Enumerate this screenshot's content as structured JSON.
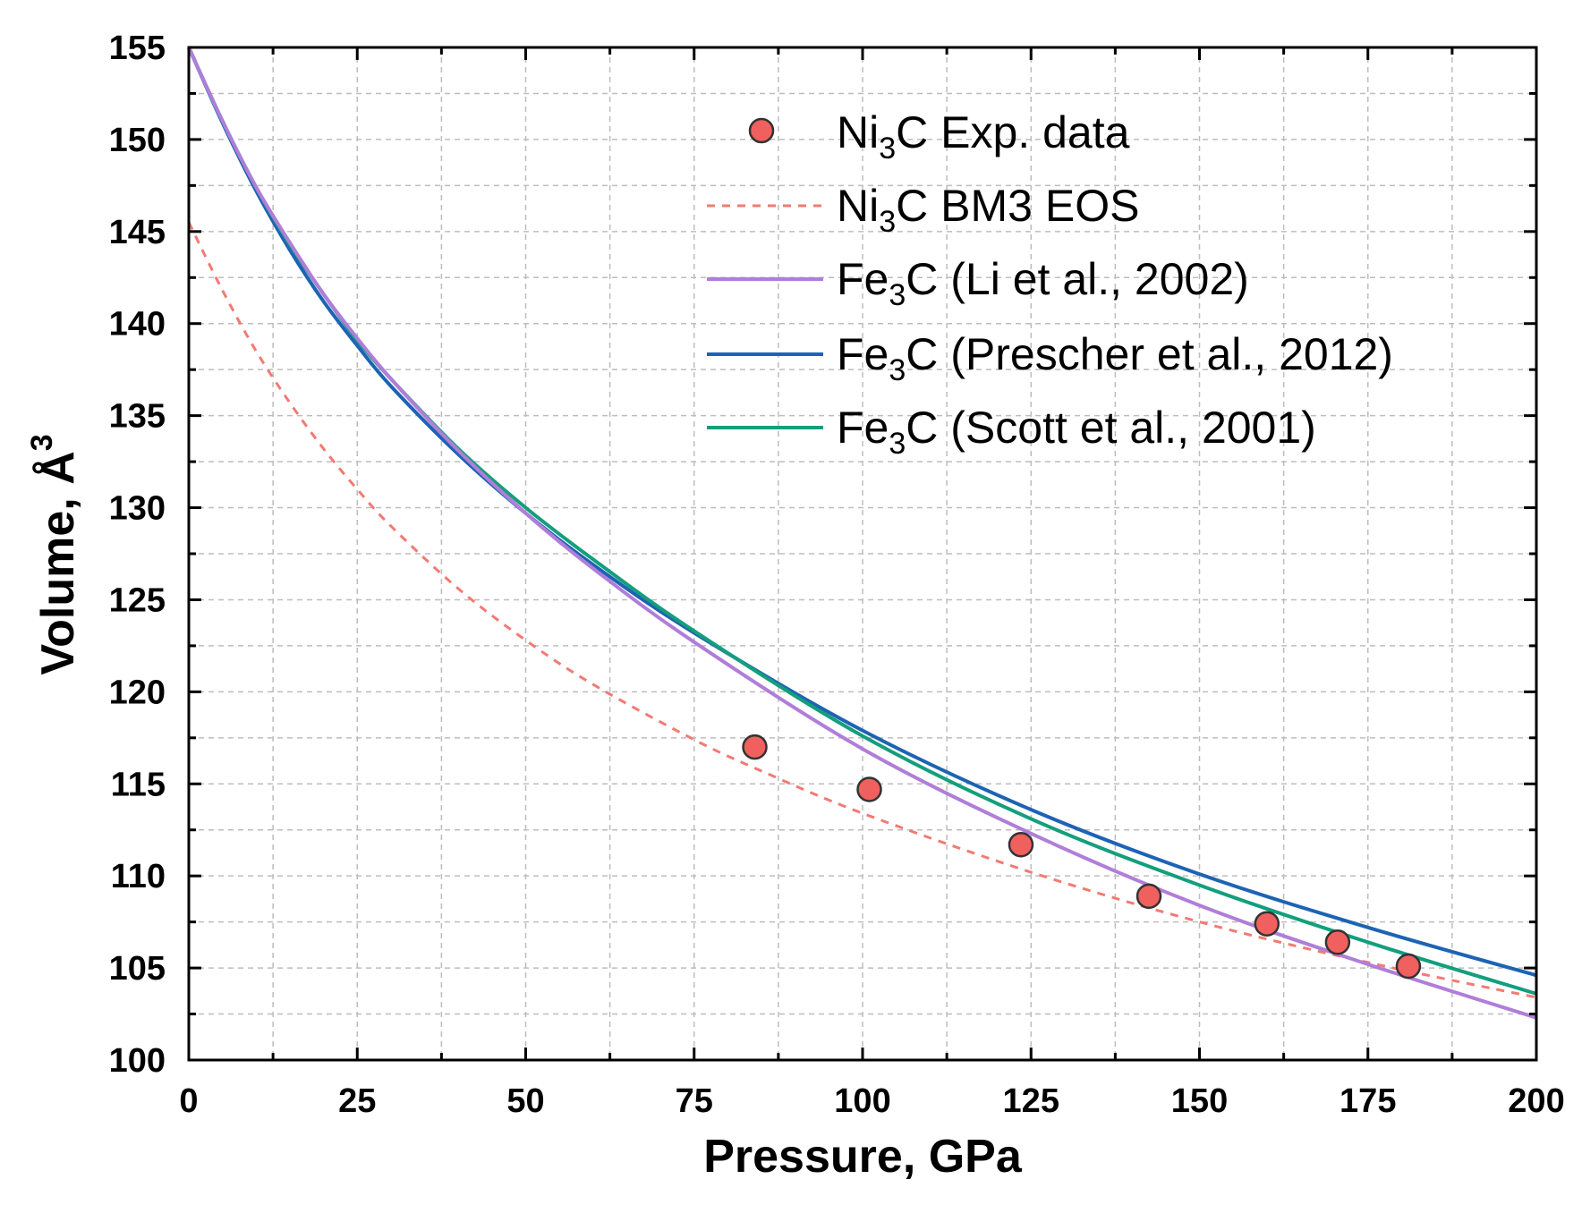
{
  "chart_data": {
    "type": "line",
    "xlabel": "Pressure, GPa",
    "ylabel": "Volume, Å",
    "ylabel_sup": "3",
    "xlim": [
      0,
      200
    ],
    "ylim": [
      100,
      155
    ],
    "xticks": [
      0,
      25,
      50,
      75,
      100,
      125,
      150,
      175,
      200
    ],
    "yticks": [
      100,
      105,
      110,
      115,
      120,
      125,
      130,
      135,
      140,
      145,
      150,
      155
    ],
    "xtick_labels": [
      "0",
      "25",
      "50",
      "75",
      "100",
      "125",
      "150",
      "175",
      "200"
    ],
    "ytick_labels": [
      "100",
      "105",
      "110",
      "115",
      "120",
      "125",
      "130",
      "135",
      "140",
      "145",
      "150",
      "155"
    ],
    "grid": true,
    "legend_position": "top-right",
    "series": [
      {
        "name": "Ni3C Exp. data",
        "legend": {
          "main": "Ni",
          "sub": "3",
          "rest": "C Exp. data"
        },
        "kind": "scatter",
        "color": "#f0605e",
        "x": [
          84,
          101,
          123.5,
          142.5,
          160,
          170.5,
          181
        ],
        "y": [
          117.0,
          114.7,
          111.7,
          108.9,
          107.4,
          106.4,
          105.1
        ]
      },
      {
        "name": "Ni3C BM3 EOS",
        "legend": {
          "main": "Ni",
          "sub": "3",
          "rest": "C BM3 EOS"
        },
        "kind": "dashed",
        "color": "#f27a73",
        "x": [
          0,
          5,
          10,
          15,
          20,
          25,
          30,
          40,
          50,
          60,
          75,
          85,
          100,
          125,
          150,
          175,
          200
        ],
        "y": [
          145.5,
          141.8,
          138.5,
          135.7,
          133.2,
          131.0,
          129.0,
          125.6,
          122.8,
          120.4,
          117.4,
          115.7,
          113.4,
          110.2,
          107.5,
          105.3,
          103.4
        ]
      },
      {
        "name": "Fe3C (Li et al., 2002)",
        "legend": {
          "main": "Fe",
          "sub": "3",
          "rest": "C (Li et al., 2002)"
        },
        "kind": "line",
        "color": "#b07ed9",
        "x": [
          0,
          5,
          10,
          15,
          20,
          25,
          30,
          40,
          50,
          60,
          75,
          100,
          125,
          150,
          175,
          200
        ],
        "y": [
          155.0,
          151.0,
          147.4,
          144.4,
          141.6,
          139.2,
          137.0,
          133.1,
          129.7,
          126.7,
          122.7,
          116.9,
          112.3,
          108.4,
          105.2,
          102.3
        ]
      },
      {
        "name": "Fe3C (Prescher et al., 2012)",
        "legend": {
          "main": "Fe",
          "sub": "3",
          "rest": "C (Prescher et al., 2012)"
        },
        "kind": "line",
        "color": "#1d63b4",
        "x": [
          0,
          5,
          10,
          15,
          20,
          25,
          30,
          40,
          50,
          60,
          75,
          100,
          125,
          150,
          175,
          200
        ],
        "y": [
          155.0,
          150.9,
          147.2,
          144.0,
          141.2,
          138.8,
          136.6,
          132.9,
          129.7,
          126.9,
          123.2,
          117.9,
          113.6,
          110.1,
          107.2,
          104.6
        ]
      },
      {
        "name": "Fe3C (Scott et al., 2001)",
        "legend": {
          "main": "Fe",
          "sub": "3",
          "rest": "C (Scott et al., 2001)"
        },
        "kind": "line",
        "color": "#149e7c",
        "x": [
          0,
          5,
          10,
          15,
          20,
          25,
          30,
          40,
          50,
          60,
          75,
          100,
          125,
          150,
          175,
          200
        ],
        "y": [
          155.0,
          151.0,
          147.4,
          144.3,
          141.6,
          139.1,
          137.0,
          133.2,
          130.0,
          127.2,
          123.3,
          117.6,
          113.1,
          109.5,
          106.4,
          103.6
        ]
      }
    ]
  }
}
